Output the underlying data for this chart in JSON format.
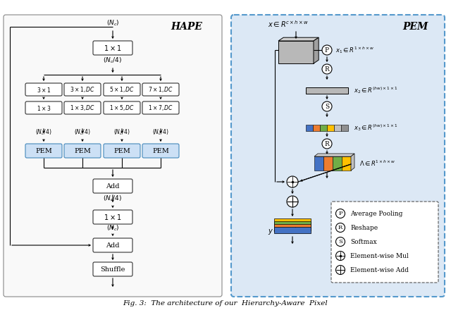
{
  "bg_color": "#ffffff",
  "pem_bg": "#dce8f5",
  "hape_label": "HAPE",
  "pem_label": "PEM",
  "pem_box_fc": "#cce0f5",
  "box_fc": "#ffffff",
  "box_ec": "#333333",
  "legend_items": [
    [
      "P",
      "Average Pooling"
    ],
    [
      "R",
      "Reshape"
    ],
    [
      "S",
      "Softmax"
    ],
    [
      "⊙",
      "Element-wise Mul"
    ],
    [
      "⊕",
      "Element-wise Add"
    ]
  ],
  "top_labels": [
    "$3 \\times 1$",
    "$3 \\times 1, DC$",
    "$5 \\times 1, DC$",
    "$7 \\times 1, DC$"
  ],
  "bot_labels": [
    "$1 \\times 3$",
    "$1 \\times 3, DC$",
    "$1 \\times 5, DC$",
    "$1 \\times 7, DC$"
  ],
  "branch_colors_3d": [
    "#4472c4",
    "#ed7d31",
    "#70ad47",
    "#ffc000"
  ],
  "gray1": "#b0b0b0",
  "gray2": "#c8c8c8",
  "gray3": "#d8d8d8"
}
